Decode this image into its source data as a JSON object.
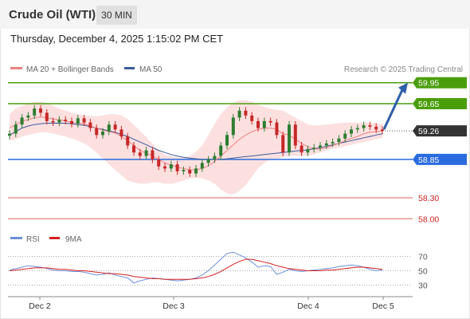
{
  "header": {
    "instrument": "Crude Oil (WTI)",
    "interval": "30 MIN",
    "datetime": "Thursday, December 4, 2025 1:15:02 PM CET"
  },
  "legend": {
    "ma20": "MA 20 + Bollinger Bands",
    "ma50": "MA 50",
    "credit": "Research © 2025 Trading Central",
    "rsi": "RSI",
    "rsi_ma": "9MA"
  },
  "colors": {
    "ma20": "#f08080",
    "ma50": "#3a5a9a",
    "bollinger_fill": "#fbdada",
    "bull": "#2e7d32",
    "bear": "#c62828",
    "resistance": "#4a9e0c",
    "pivot": "#2a6be0",
    "support": "#e06060",
    "last_price": "#333333",
    "rsi": "#6c8fdc",
    "rsi_ma": "#d62020",
    "arrow": "#2f5fa8"
  },
  "chart_data": [
    {
      "type": "line",
      "title": "",
      "x_tick_labels": [
        "Dec 2",
        "Dec 3",
        "Dec 4",
        "Dec 5"
      ],
      "ylim": [
        57.9,
        60.05
      ],
      "last_price": 59.26,
      "levels": [
        {
          "value": 59.95,
          "label": "59.95",
          "kind": "resistance"
        },
        {
          "value": 59.65,
          "label": "59.65",
          "kind": "resistance"
        },
        {
          "value": 58.85,
          "label": "58.85",
          "kind": "pivot"
        },
        {
          "value": 58.3,
          "label": "58.30",
          "kind": "support"
        },
        {
          "value": 58.0,
          "label": "58.00",
          "kind": "support"
        }
      ],
      "price_series": [
        59.22,
        59.35,
        59.45,
        59.48,
        59.58,
        59.52,
        59.4,
        59.38,
        59.42,
        59.4,
        59.36,
        59.44,
        59.38,
        59.3,
        59.2,
        59.25,
        59.35,
        59.28,
        59.18,
        59.05,
        58.95,
        58.9,
        58.98,
        58.85,
        58.75,
        58.72,
        58.78,
        58.68,
        58.7,
        58.65,
        58.72,
        58.8,
        58.85,
        58.9,
        59.05,
        59.2,
        59.45,
        59.55,
        59.48,
        59.4,
        59.3,
        59.4,
        59.38,
        59.2,
        58.95,
        59.35,
        59.05,
        58.95,
        59.0,
        59.02,
        59.05,
        59.08,
        59.1,
        59.15,
        59.22,
        59.28,
        59.3,
        59.34,
        59.32,
        59.28,
        59.26
      ],
      "ma20": [
        59.3,
        59.35,
        59.4,
        59.42,
        59.45,
        59.46,
        59.45,
        59.43,
        59.42,
        59.4,
        59.38,
        59.37,
        59.36,
        59.33,
        59.3,
        59.27,
        59.25,
        59.23,
        59.18,
        59.12,
        59.05,
        58.98,
        58.94,
        58.9,
        58.85,
        58.8,
        58.77,
        58.74,
        58.72,
        58.7,
        58.7,
        58.72,
        58.76,
        58.82,
        58.9,
        58.98,
        59.06,
        59.14,
        59.2,
        59.25,
        59.28,
        59.3,
        59.3,
        59.28,
        59.22,
        59.2,
        59.14,
        59.08,
        59.03,
        59.0,
        59.0,
        59.02,
        59.05,
        59.08,
        59.12,
        59.15,
        59.18,
        59.22,
        59.24,
        59.25,
        59.26
      ],
      "bollinger_upper": [
        59.5,
        59.58,
        59.62,
        59.65,
        59.68,
        59.68,
        59.66,
        59.62,
        59.58,
        59.55,
        59.52,
        59.5,
        59.48,
        59.47,
        59.47,
        59.48,
        59.5,
        59.5,
        59.48,
        59.43,
        59.35,
        59.26,
        59.17,
        59.08,
        58.98,
        58.92,
        58.9,
        58.88,
        58.88,
        58.9,
        58.96,
        59.05,
        59.2,
        59.36,
        59.5,
        59.6,
        59.66,
        59.7,
        59.7,
        59.68,
        59.64,
        59.6,
        59.58,
        59.56,
        59.55,
        59.5,
        59.45,
        59.4,
        59.35,
        59.34,
        59.34,
        59.35,
        59.36,
        59.37,
        59.38,
        59.38,
        59.38,
        59.38,
        59.38,
        59.37,
        59.36
      ],
      "bollinger_lower": [
        59.12,
        59.14,
        59.18,
        59.2,
        59.22,
        59.24,
        59.24,
        59.22,
        59.2,
        59.18,
        59.15,
        59.12,
        59.08,
        59.02,
        58.95,
        58.86,
        58.78,
        58.7,
        58.62,
        58.55,
        58.52,
        58.5,
        58.5,
        58.52,
        58.52,
        58.5,
        58.5,
        58.52,
        58.55,
        58.58,
        58.58,
        58.58,
        58.55,
        58.5,
        58.42,
        58.36,
        58.35,
        58.4,
        58.48,
        58.6,
        58.72,
        58.8,
        58.85,
        58.86,
        58.88,
        58.9,
        58.9,
        58.9,
        58.9,
        58.92,
        58.95,
        58.98,
        59.0,
        59.02,
        59.04,
        59.06,
        59.08,
        59.1,
        59.12,
        59.14,
        59.16
      ],
      "ma50": [
        59.2,
        59.25,
        59.3,
        59.33,
        59.35,
        59.36,
        59.37,
        59.37,
        59.37,
        59.37,
        59.36,
        59.35,
        59.34,
        59.32,
        59.3,
        59.28,
        59.26,
        59.24,
        59.21,
        59.18,
        59.14,
        59.1,
        59.06,
        59.02,
        58.98,
        58.95,
        58.92,
        58.9,
        58.88,
        58.87,
        58.86,
        58.85,
        58.85,
        58.85,
        58.85,
        58.86,
        58.87,
        58.88,
        58.89,
        58.9,
        58.91,
        58.92,
        58.93,
        58.94,
        58.95,
        58.96,
        58.97,
        58.98,
        58.99,
        59.0,
        59.02,
        59.04,
        59.06,
        59.08,
        59.1,
        59.12,
        59.14,
        59.16,
        59.18,
        59.2,
        59.22
      ],
      "projection": {
        "from": 59.26,
        "to": 59.95
      }
    },
    {
      "type": "line",
      "title": "",
      "y_tick_labels": [
        "70",
        "50",
        "30"
      ],
      "ylim": [
        20,
        80
      ],
      "series": [
        {
          "name": "RSI",
          "values": [
            51,
            53,
            55,
            57,
            56,
            55,
            53,
            51,
            50,
            50,
            49,
            49,
            48,
            46,
            44,
            45,
            47,
            44,
            42,
            40,
            33,
            36,
            38,
            40,
            39,
            38,
            37,
            36,
            37,
            38,
            40,
            44,
            50,
            58,
            66,
            74,
            76,
            72,
            68,
            62,
            55,
            57,
            56,
            45,
            48,
            52,
            50,
            49,
            50,
            51,
            52,
            53,
            54,
            56,
            57,
            58,
            57,
            55,
            52,
            50,
            51
          ]
        },
        {
          "name": "9MA",
          "values": [
            50,
            51,
            52,
            53,
            54,
            54,
            54,
            53,
            52,
            52,
            51,
            50,
            50,
            49,
            48,
            47,
            46,
            46,
            45,
            44,
            42,
            41,
            40,
            39,
            39,
            38,
            38,
            38,
            38,
            38,
            39,
            40,
            42,
            45,
            49,
            54,
            59,
            63,
            66,
            66,
            64,
            62,
            60,
            57,
            55,
            53,
            52,
            51,
            50,
            50,
            50,
            51,
            51,
            52,
            53,
            54,
            55,
            55,
            54,
            53,
            52
          ]
        }
      ]
    }
  ]
}
